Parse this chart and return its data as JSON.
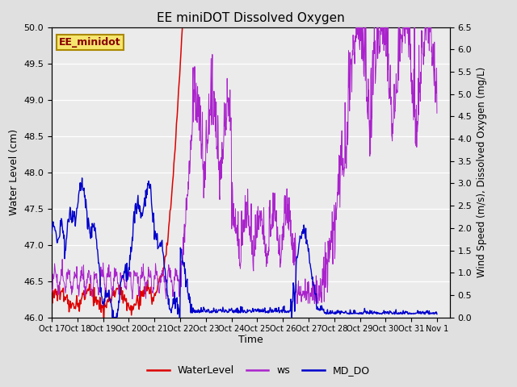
{
  "title": "EE miniDOT Dissolved Oxygen",
  "station_label": "EE_minidot",
  "xlabel": "Time",
  "ylabel_left": "Water Level (cm)",
  "ylabel_right": "Wind Speed (m/s), Dissolved Oxygen (mg/L)",
  "ylim_left": [
    46.0,
    50.0
  ],
  "ylim_right": [
    0.0,
    6.5
  ],
  "yticks_left": [
    46.0,
    46.5,
    47.0,
    47.5,
    48.0,
    48.5,
    49.0,
    49.5,
    50.0
  ],
  "yticks_right": [
    0.0,
    0.5,
    1.0,
    1.5,
    2.0,
    2.5,
    3.0,
    3.5,
    4.0,
    4.5,
    5.0,
    5.5,
    6.0,
    6.5
  ],
  "bg_color": "#e0e0e0",
  "plot_bg_color": "#ebebeb",
  "water_level_color": "#dd0000",
  "ws_color": "#aa22cc",
  "md_do_color": "#0000cc",
  "x_tick_labels": [
    "Oct 17",
    "Oct 18",
    "Oct 19",
    "Oct 20",
    "Oct 21",
    "Oct 22",
    "Oct 23",
    "Oct 24",
    "Oct 25",
    "Oct 26",
    "Oct 27",
    "Oct 28",
    "Oct 29",
    "Oct 30",
    "Oct 31",
    "Nov 1"
  ],
  "seed": 1234
}
